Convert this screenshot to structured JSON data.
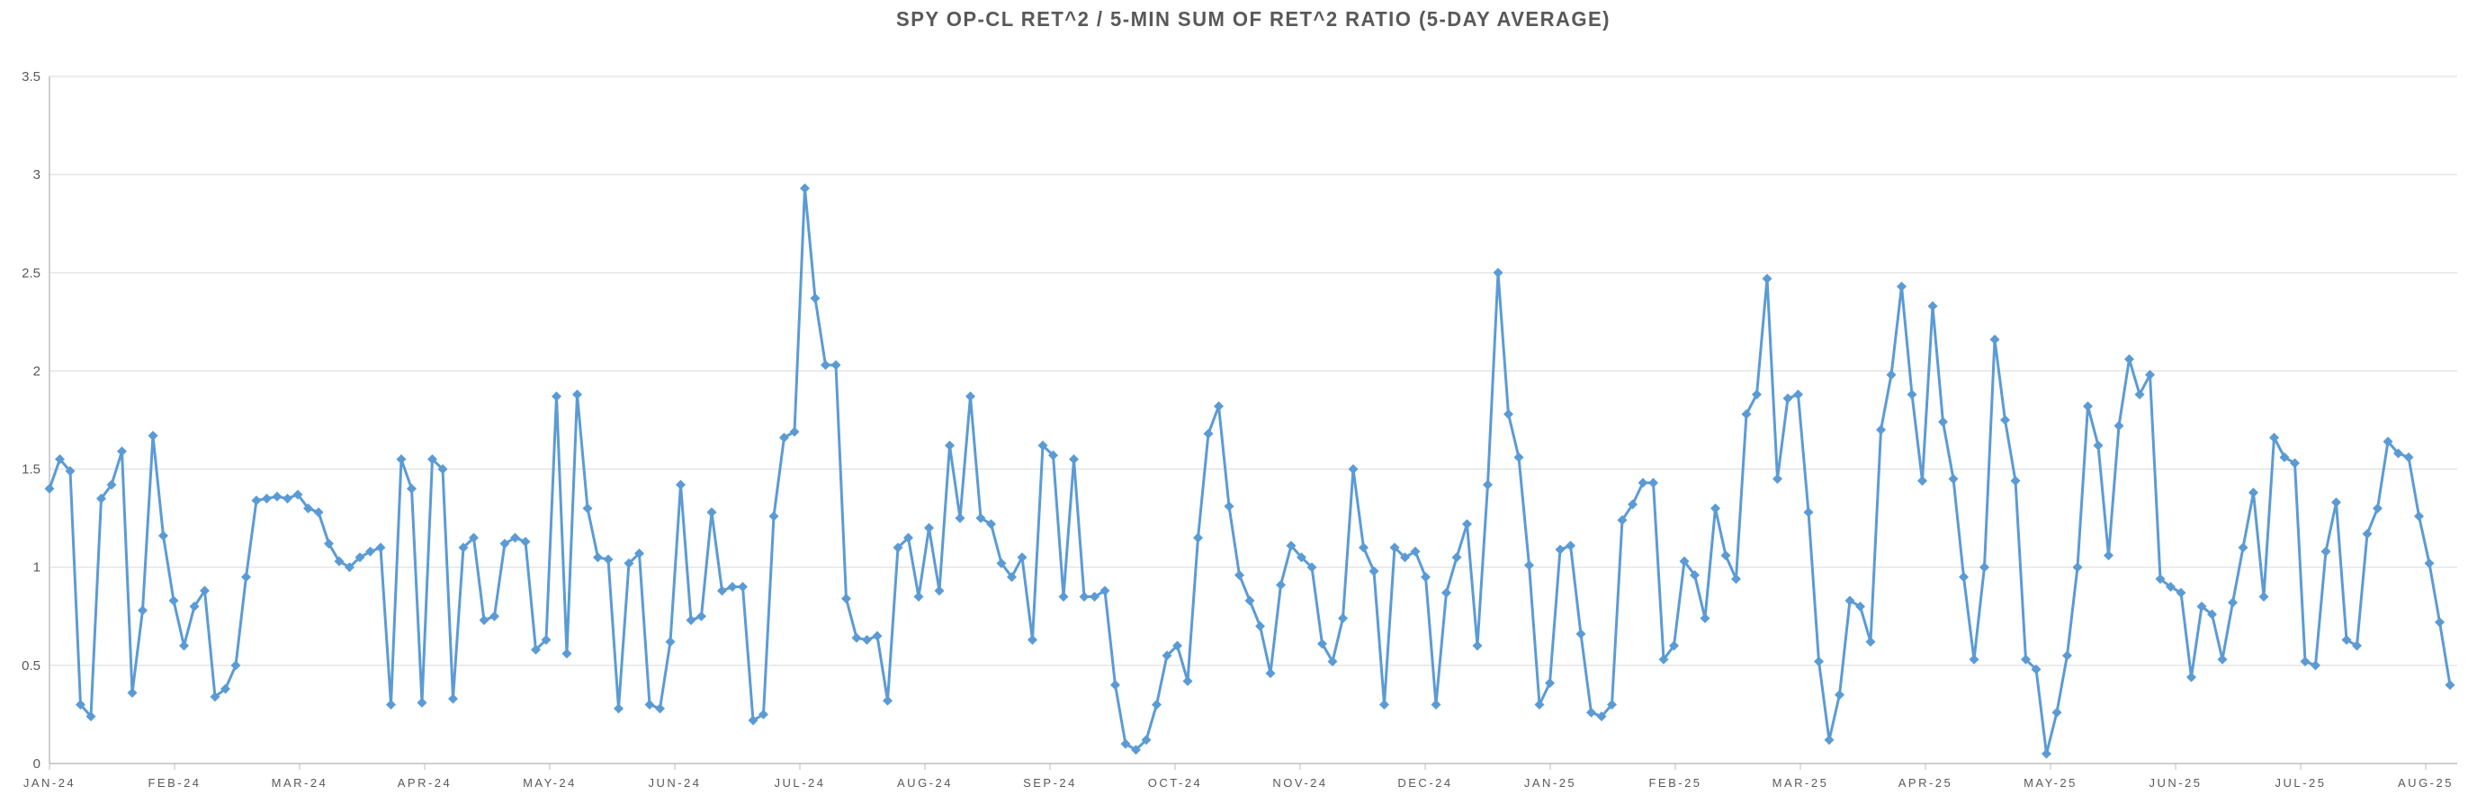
{
  "chart_data": {
    "type": "line",
    "title": "SPY OP-CL RET^2 / 5-MIN SUM OF RET^2 RATIO (5-DAY AVERAGE)",
    "xlabel": "",
    "ylabel": "",
    "ylim": [
      0,
      3.5
    ],
    "y_tick_labels": [
      "0",
      "0.5",
      "1",
      "1.5",
      "2",
      "2.5",
      "3",
      "3.5"
    ],
    "x_tick_labels": [
      "JAN-24",
      "FEB-24",
      "MAR-24",
      "APR-24",
      "MAY-24",
      "JUN-24",
      "JUL-24",
      "AUG-24",
      "SEP-24",
      "OCT-24",
      "NOV-24",
      "DEC-24",
      "JAN-25",
      "FEB-25",
      "MAR-25",
      "APR-25",
      "MAY-25",
      "JUN-25",
      "JUL-25",
      "AUG-25"
    ],
    "grid": "horizontal",
    "legend": "none",
    "marker": "diamond",
    "colors": {
      "line": "#5B9BD5",
      "grid": "#D9D9D9",
      "axis": "#BFBFBF",
      "text": "#595959",
      "title": "#595959",
      "background": "#FFFFFF"
    },
    "values": [
      1.4,
      1.55,
      1.49,
      0.3,
      0.24,
      1.35,
      1.42,
      1.59,
      0.36,
      0.78,
      1.67,
      1.16,
      0.83,
      0.6,
      0.8,
      0.88,
      0.34,
      0.38,
      0.5,
      0.95,
      1.34,
      1.35,
      1.36,
      1.35,
      1.37,
      1.3,
      1.28,
      1.12,
      1.03,
      1.0,
      1.05,
      1.08,
      1.1,
      0.3,
      1.55,
      1.4,
      0.31,
      1.55,
      1.5,
      0.33,
      1.1,
      1.15,
      0.73,
      0.75,
      1.12,
      1.15,
      1.13,
      0.58,
      0.63,
      1.87,
      0.56,
      1.88,
      1.3,
      1.05,
      1.04,
      0.28,
      1.02,
      1.07,
      0.3,
      0.28,
      0.62,
      1.42,
      0.73,
      0.75,
      1.28,
      0.88,
      0.9,
      0.9,
      0.22,
      0.25,
      1.26,
      1.66,
      1.69,
      2.93,
      2.37,
      2.03,
      2.03,
      0.84,
      0.64,
      0.63,
      0.65,
      0.32,
      1.1,
      1.15,
      0.85,
      1.2,
      0.88,
      1.62,
      1.25,
      1.87,
      1.25,
      1.22,
      1.02,
      0.95,
      1.05,
      0.63,
      1.62,
      1.57,
      0.85,
      1.55,
      0.85,
      0.85,
      0.88,
      0.4,
      0.1,
      0.07,
      0.12,
      0.3,
      0.55,
      0.6,
      0.42,
      1.15,
      1.68,
      1.82,
      1.31,
      0.96,
      0.83,
      0.7,
      0.46,
      0.91,
      1.11,
      1.05,
      1.0,
      0.61,
      0.52,
      0.74,
      1.5,
      1.1,
      0.98,
      0.3,
      1.1,
      1.05,
      1.08,
      0.95,
      0.3,
      0.87,
      1.05,
      1.22,
      0.6,
      1.42,
      2.5,
      1.78,
      1.56,
      1.01,
      0.3,
      0.41,
      1.09,
      1.11,
      0.66,
      0.26,
      0.24,
      0.3,
      1.24,
      1.32,
      1.43,
      1.43,
      0.53,
      0.6,
      1.03,
      0.96,
      0.74,
      1.3,
      1.06,
      0.94,
      1.78,
      1.88,
      2.47,
      1.45,
      1.86,
      1.88,
      1.28,
      0.52,
      0.12,
      0.35,
      0.83,
      0.8,
      0.62,
      1.7,
      1.98,
      2.43,
      1.88,
      1.44,
      2.33,
      1.74,
      1.45,
      0.95,
      0.53,
      1.0,
      2.16,
      1.75,
      1.44,
      0.53,
      0.48,
      0.05,
      0.26,
      0.55,
      1.0,
      1.82,
      1.62,
      1.06,
      1.72,
      2.06,
      1.88,
      1.98,
      0.94,
      0.9,
      0.87,
      0.44,
      0.8,
      0.76,
      0.53,
      0.82,
      1.1,
      1.38,
      0.85,
      1.66,
      1.56,
      1.53,
      0.52,
      0.5,
      1.08,
      1.33,
      0.63,
      0.6,
      1.17,
      1.3,
      1.64,
      1.58,
      1.56,
      1.26,
      1.02,
      0.72,
      0.4
    ]
  }
}
